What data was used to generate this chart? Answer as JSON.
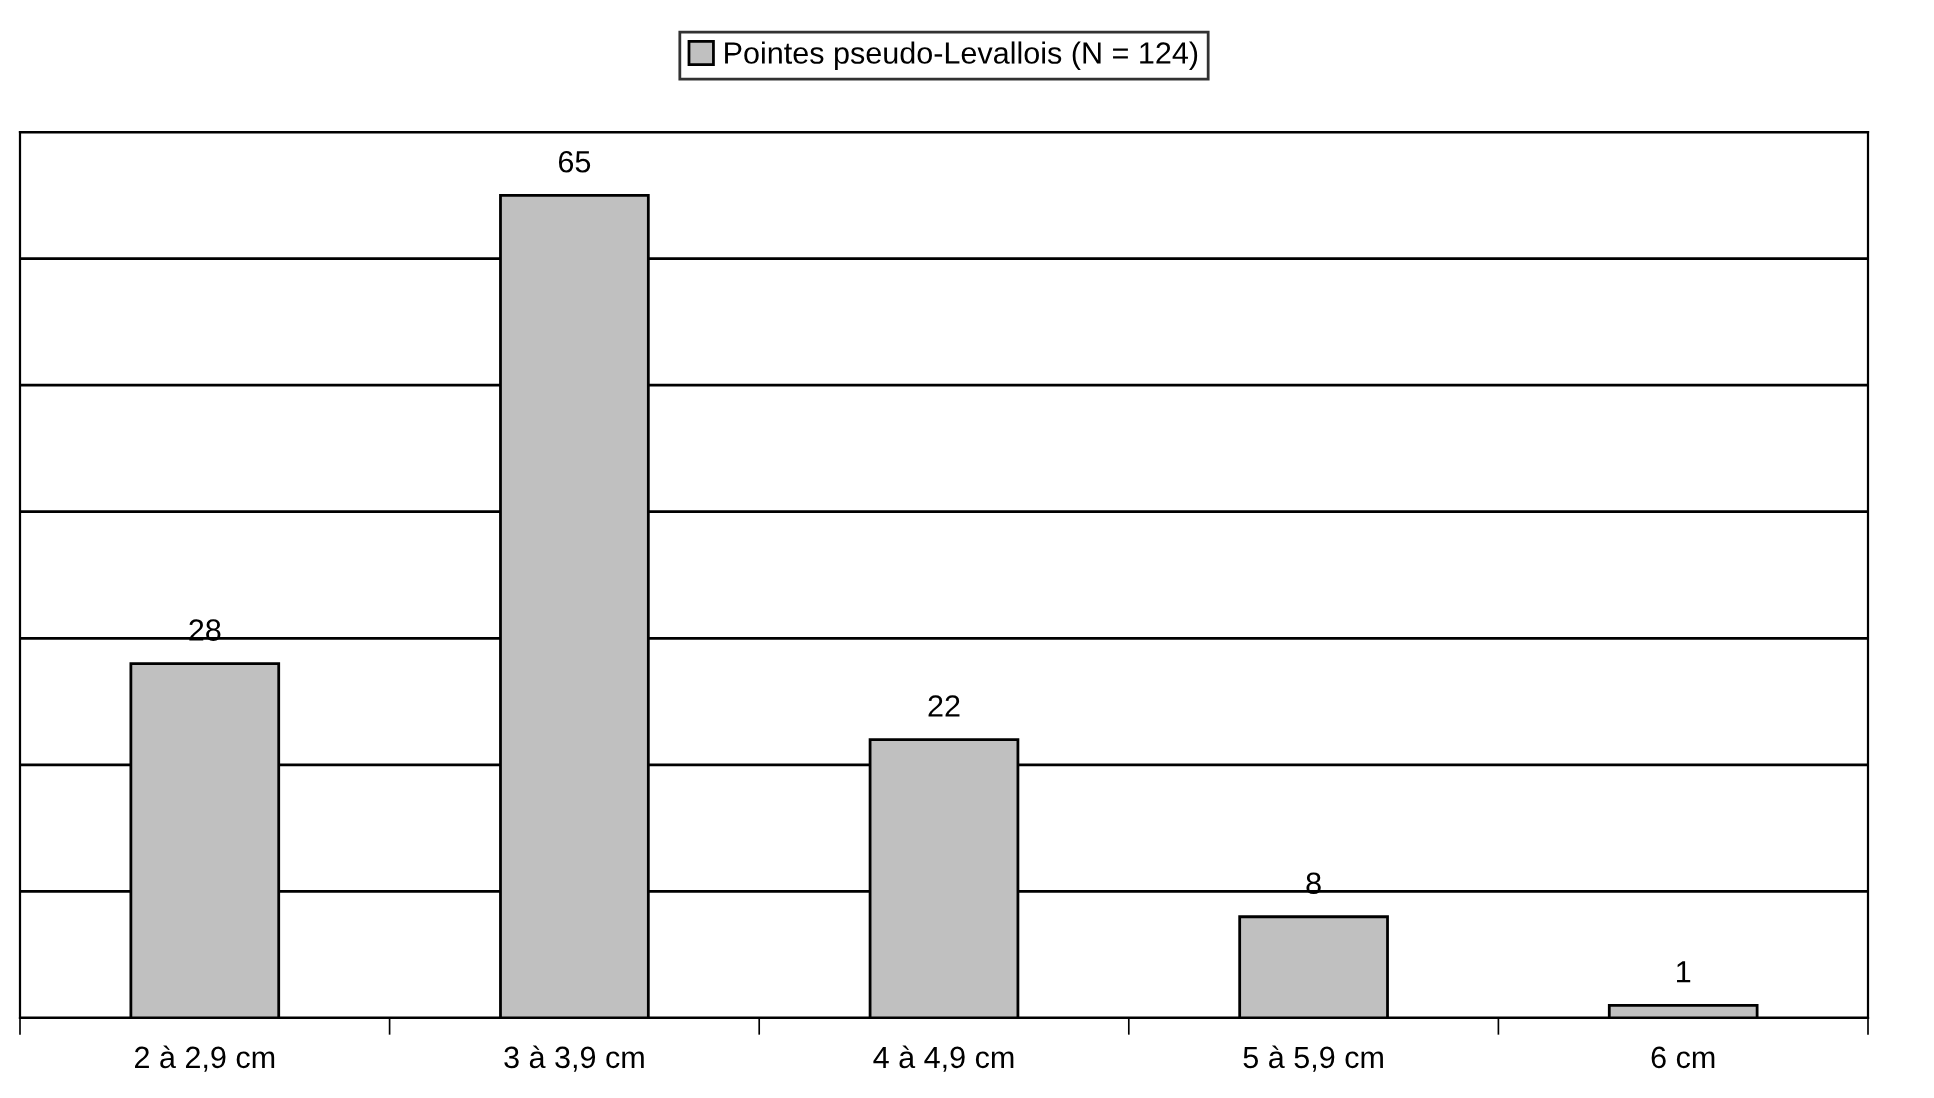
{
  "chart_data": {
    "type": "bar",
    "categories": [
      "2 à 2,9 cm",
      "3 à 3,9 cm",
      "4 à 4,9 cm",
      "5 à 5,9 cm",
      "6 cm"
    ],
    "series": [
      {
        "name": "Pointes pseudo-Levallois (N = 124)",
        "color": "#c0c0c0",
        "values": [
          28,
          65,
          22,
          8,
          1
        ]
      }
    ],
    "ylim": [
      0,
      70
    ],
    "yticks": [
      {
        "value": 0,
        "label": null
      },
      {
        "value": 10,
        "label": null
      },
      {
        "value": 20,
        "label": null
      },
      {
        "value": 30,
        "label": null
      },
      {
        "value": 40,
        "label": null
      },
      {
        "value": 50,
        "label": null
      },
      {
        "value": 60,
        "label": null
      },
      {
        "value": 70,
        "label": null
      }
    ],
    "grid": "y",
    "legend": "top",
    "data_labels": true
  }
}
